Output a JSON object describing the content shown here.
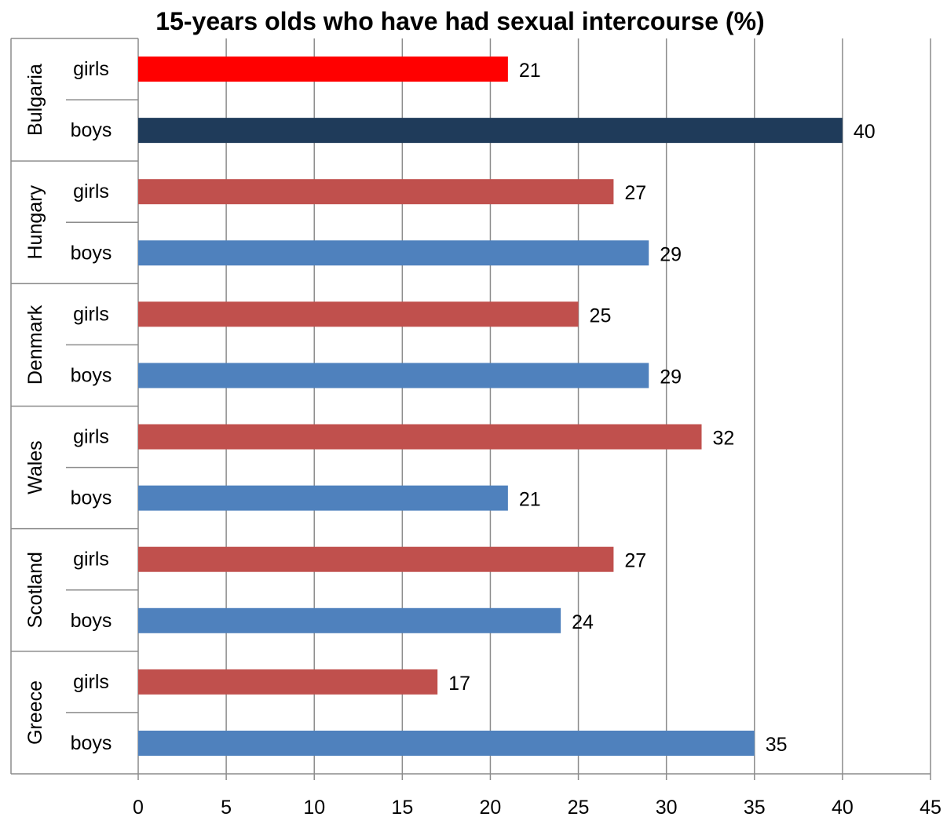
{
  "chart_data": {
    "type": "bar",
    "orientation": "horizontal",
    "title": "15-years olds who have had sexual intercourse (%)",
    "xlabel": "",
    "ylabel": "",
    "xlim": [
      0,
      45
    ],
    "x_ticks": [
      0,
      5,
      10,
      15,
      20,
      25,
      30,
      35,
      40,
      45
    ],
    "grid": true,
    "legend": "none",
    "data_labels": true,
    "groups": [
      {
        "name": "Bulgaria",
        "rows": [
          {
            "label": "girls",
            "value": 21,
            "color": "#ff0000"
          },
          {
            "label": "boys",
            "value": 40,
            "color": "#1f3b5a"
          }
        ]
      },
      {
        "name": "Hungary",
        "rows": [
          {
            "label": "girls",
            "value": 27,
            "color": "#c0504d"
          },
          {
            "label": "boys",
            "value": 29,
            "color": "#4f81bd"
          }
        ]
      },
      {
        "name": "Denmark",
        "rows": [
          {
            "label": "girls",
            "value": 25,
            "color": "#c0504d"
          },
          {
            "label": "boys",
            "value": 29,
            "color": "#4f81bd"
          }
        ]
      },
      {
        "name": "Wales",
        "rows": [
          {
            "label": "girls",
            "value": 32,
            "color": "#c0504d"
          },
          {
            "label": "boys",
            "value": 21,
            "color": "#4f81bd"
          }
        ]
      },
      {
        "name": "Scotland",
        "rows": [
          {
            "label": "girls",
            "value": 27,
            "color": "#c0504d"
          },
          {
            "label": "boys",
            "value": 24,
            "color": "#4f81bd"
          }
        ]
      },
      {
        "name": "Greece",
        "rows": [
          {
            "label": "girls",
            "value": 17,
            "color": "#c0504d"
          },
          {
            "label": "boys",
            "value": 35,
            "color": "#4f81bd"
          }
        ]
      }
    ]
  }
}
